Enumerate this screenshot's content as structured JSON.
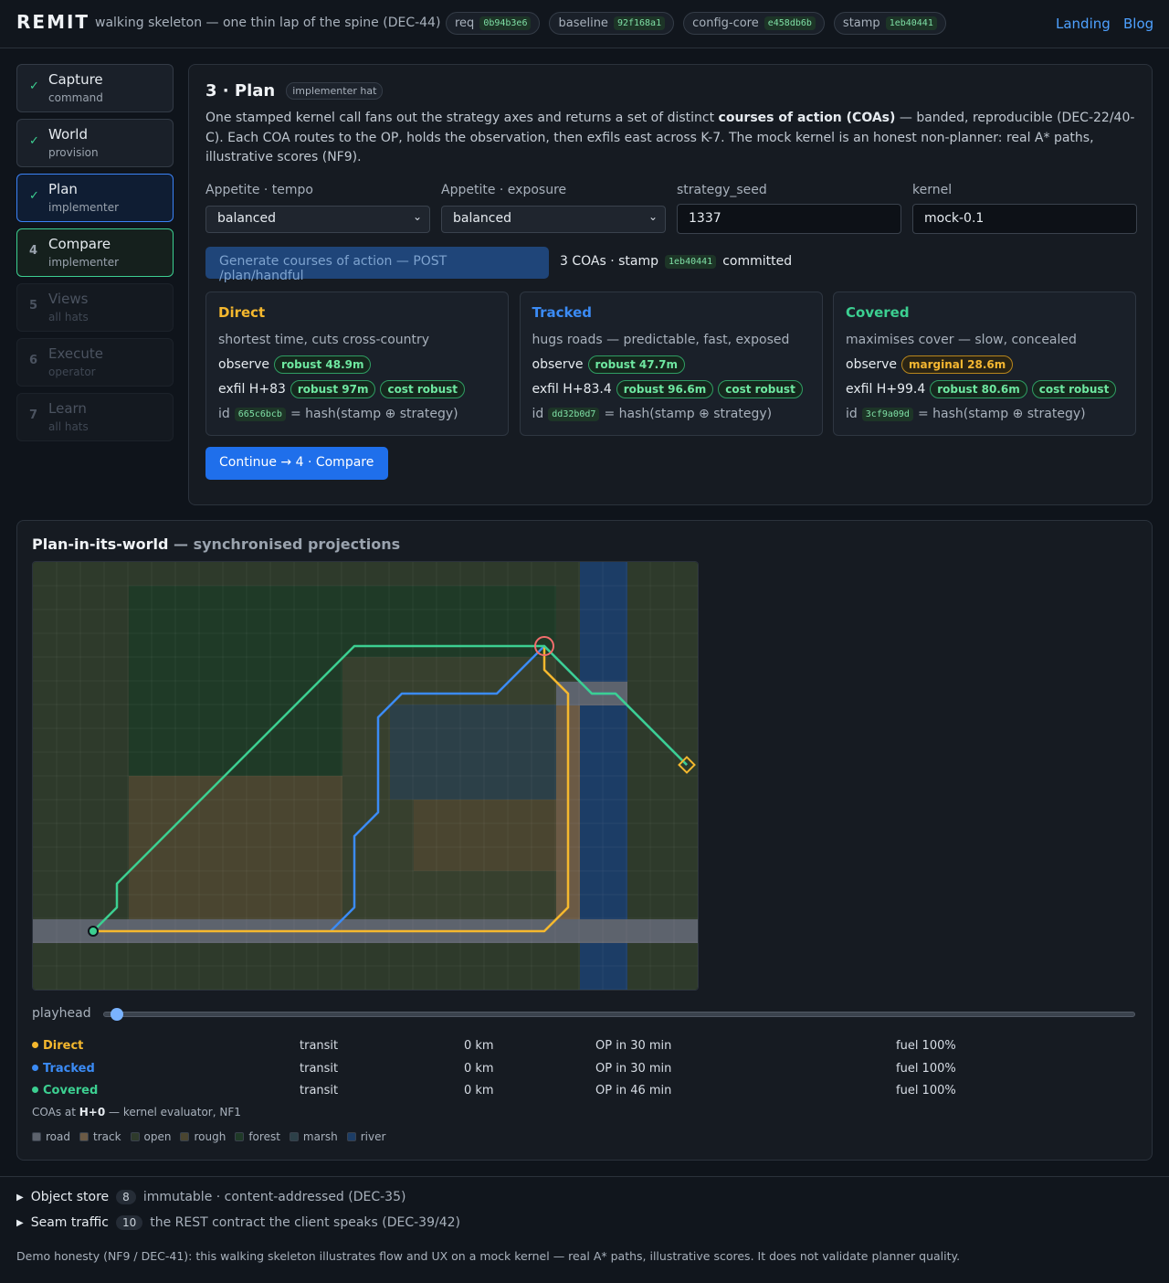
{
  "header": {
    "brand": "REMIT",
    "tagline": "walking skeleton — one thin lap of the spine (DEC-44)",
    "chips": [
      {
        "label": "req",
        "hash": "0b94b3e6"
      },
      {
        "label": "baseline",
        "hash": "92f168a1"
      },
      {
        "label": "config-core",
        "hash": "e458db6b"
      },
      {
        "label": "stamp",
        "hash": "1eb40441"
      }
    ],
    "links": [
      "Landing",
      "Blog"
    ]
  },
  "steps": [
    {
      "marker": "✓",
      "name": "Capture",
      "role": "command",
      "state": "done"
    },
    {
      "marker": "✓",
      "name": "World",
      "role": "provision",
      "state": "done"
    },
    {
      "marker": "✓",
      "name": "Plan",
      "role": "implementer",
      "state": "current"
    },
    {
      "marker": "4",
      "name": "Compare",
      "role": "implementer",
      "state": "next"
    },
    {
      "marker": "5",
      "name": "Views",
      "role": "all hats",
      "state": "locked"
    },
    {
      "marker": "6",
      "name": "Execute",
      "role": "operator",
      "state": "locked"
    },
    {
      "marker": "7",
      "name": "Learn",
      "role": "all hats",
      "state": "locked"
    }
  ],
  "plan": {
    "title": "3 · Plan",
    "hat": "implementer hat",
    "intro": [
      "One stamped kernel call fans out the strategy axes and returns a set of distinct ",
      "courses of action (COAs)",
      " — banded, reproducible (DEC-22/40-C). Each COA routes to the OP, holds the observation, then exfils east across K-7. The mock kernel is an honest non-planner: real A* paths, illustrative scores (NF9)."
    ],
    "fields": [
      {
        "label": "Appetite · tempo",
        "value": "balanced",
        "kind": "select"
      },
      {
        "label": "Appetite · exposure",
        "value": "balanced",
        "kind": "select"
      },
      {
        "label": "strategy_seed",
        "value": "1337",
        "kind": "input"
      },
      {
        "label": "kernel",
        "value": "mock-0.1",
        "kind": "input"
      }
    ],
    "generate": "Generate courses of action — POST /plan/handful",
    "status": {
      "text": "3 COAs · stamp",
      "hash": "1eb40441",
      "tail": "committed"
    },
    "coas": [
      {
        "name": "Direct",
        "color": "#f5b82e",
        "desc": "shortest time, cuts cross-country",
        "observe": {
          "label": "observe",
          "badge": "robust 48.9m",
          "tone": "good"
        },
        "exfil": {
          "label": "exfil H+83",
          "badges": [
            "robust 97m",
            "cost robust"
          ]
        },
        "id": {
          "label": "id",
          "hash": "665c6bcb",
          "tail": "= hash(stamp ⊕ strategy)"
        }
      },
      {
        "name": "Tracked",
        "color": "#3b8bf5",
        "desc": "hugs roads — predictable, fast, exposed",
        "observe": {
          "label": "observe",
          "badge": "robust 47.7m",
          "tone": "good"
        },
        "exfil": {
          "label": "exfil H+83.4",
          "badges": [
            "robust 96.6m",
            "cost robust"
          ]
        },
        "id": {
          "label": "id",
          "hash": "dd32b0d7",
          "tail": "= hash(stamp ⊕ strategy)"
        }
      },
      {
        "name": "Covered",
        "color": "#3ccf91",
        "desc": "maximises cover — slow, concealed",
        "observe": {
          "label": "observe",
          "badge": "marginal 28.6m",
          "tone": "warn"
        },
        "exfil": {
          "label": "exfil H+99.4",
          "badges": [
            "robust 80.6m",
            "cost robust"
          ]
        },
        "id": {
          "label": "id",
          "hash": "3cf9a09d",
          "tail": "= hash(stamp ⊕ strategy)"
        }
      }
    ],
    "continue": "Continue → 4 · Compare"
  },
  "world": {
    "title": "Plan-in-its-world",
    "subtitle": "— synchronised projections",
    "playhead": "playhead",
    "rows": [
      {
        "name": "Direct",
        "state": "transit",
        "distance": "0 km",
        "op": "OP in 30 min",
        "fuel": "fuel 100%"
      },
      {
        "name": "Tracked",
        "state": "transit",
        "distance": "0 km",
        "op": "OP in 30 min",
        "fuel": "fuel 100%"
      },
      {
        "name": "Covered",
        "state": "transit",
        "distance": "0 km",
        "op": "OP in 46 min",
        "fuel": "fuel 100%"
      }
    ],
    "caption": [
      "COAs at ",
      "H+0",
      " — kernel evaluator, NF1"
    ],
    "legend": [
      {
        "name": "road",
        "color": "#5d636d"
      },
      {
        "name": "track",
        "color": "#6b5a45"
      },
      {
        "name": "open",
        "color": "#2e3a2b"
      },
      {
        "name": "rough",
        "color": "#4a4530"
      },
      {
        "name": "forest",
        "color": "#1f3a27"
      },
      {
        "name": "marsh",
        "color": "#2c4048"
      },
      {
        "name": "river",
        "color": "#1c3d66"
      }
    ]
  },
  "footer": {
    "details": [
      {
        "title": "Object store",
        "count": 8,
        "note": "immutable · content-addressed (DEC-35)"
      },
      {
        "title": "Seam traffic",
        "count": 10,
        "note": "the REST contract the client speaks (DEC-39/42)"
      }
    ],
    "note": "Demo honesty (NF9 / DEC-41): this walking skeleton illustrates flow and UX on a mock kernel — real A* paths, illustrative scores. It does not validate planner quality."
  }
}
